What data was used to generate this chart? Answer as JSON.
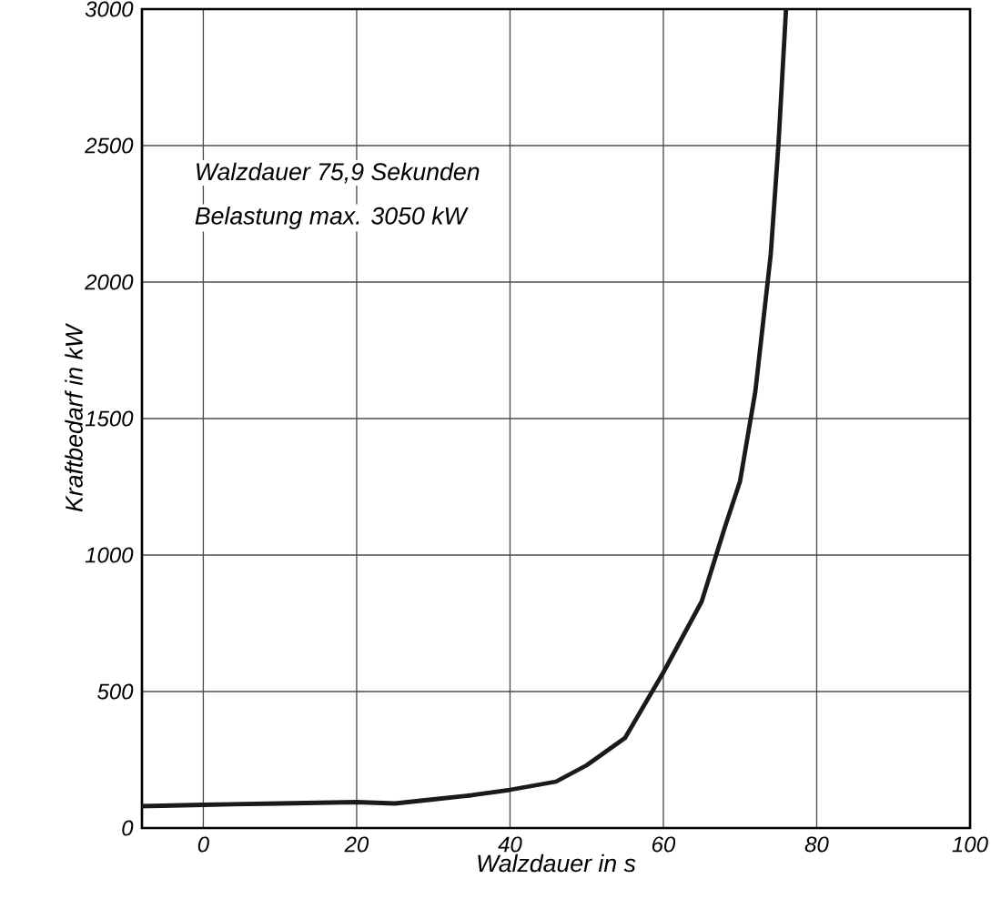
{
  "chart_data": {
    "type": "line",
    "xlabel": "Walzdauer in s",
    "ylabel": "Kraftbedarf in kW",
    "annotations": [
      "Walzdauer 75,9 Sekunden",
      "Belastung max. 3050 kW"
    ],
    "x": [
      -8,
      0,
      10,
      20,
      25,
      30,
      35,
      40,
      46,
      50,
      55,
      60,
      65,
      68,
      70,
      72,
      74,
      75,
      76
    ],
    "series": [
      {
        "color": "#1a1a1a",
        "values": [
          80,
          85,
          90,
          95,
          90,
          105,
          120,
          140,
          170,
          230,
          330,
          570,
          830,
          1100,
          1270,
          1600,
          2100,
          2500,
          3000
        ]
      }
    ],
    "xlim": [
      -8,
      100
    ],
    "ylim": [
      0,
      3000
    ],
    "xticks": [
      0,
      20,
      40,
      60,
      80,
      100
    ],
    "yticks": [
      0,
      500,
      1000,
      1500,
      2000,
      2500,
      3000
    ],
    "grid": true,
    "marker": "none",
    "line_style": "solid"
  }
}
